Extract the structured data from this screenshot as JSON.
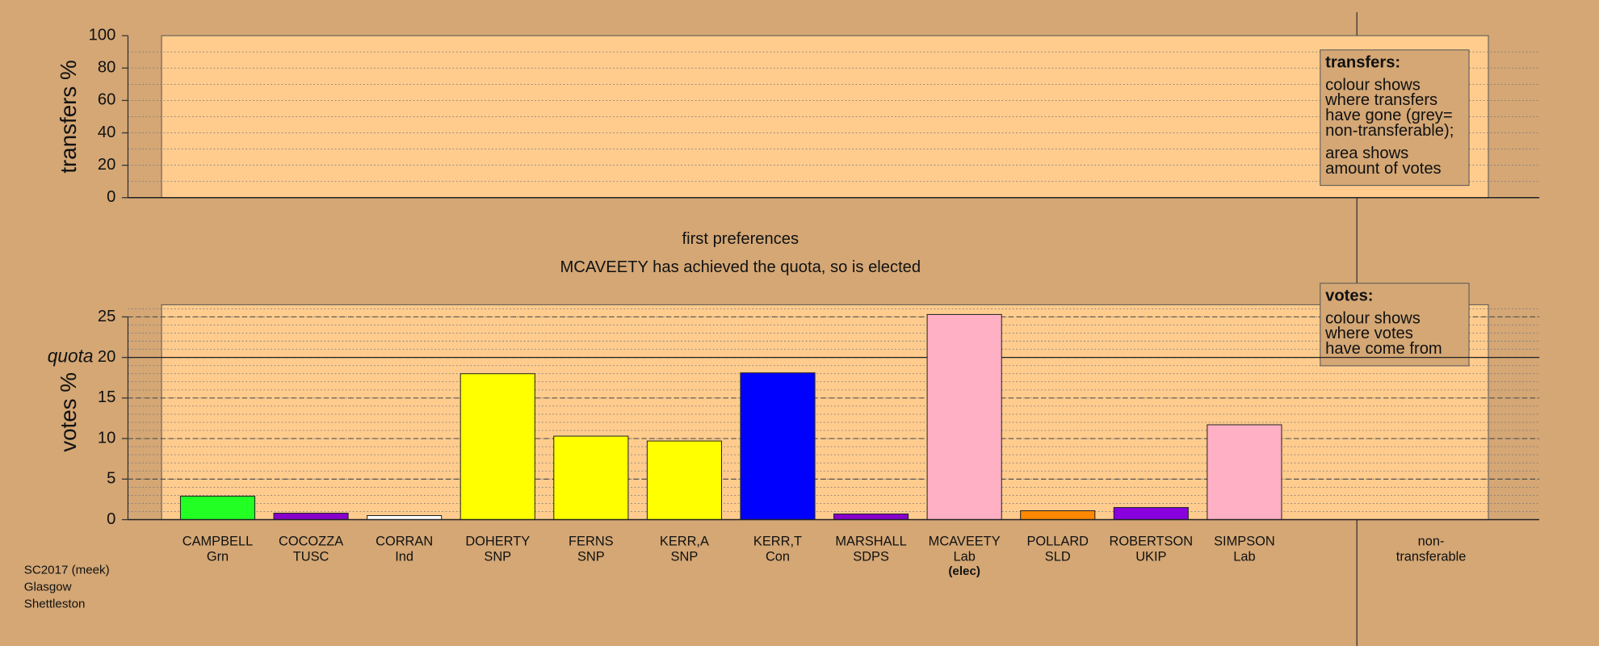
{
  "chart_data": [
    {
      "type": "empty",
      "ylabel": "transfers %",
      "ylim": [
        0,
        100
      ],
      "yticks": [
        0,
        20,
        40,
        60,
        80,
        100
      ],
      "minor_grid": 10,
      "legend": {
        "title": "transfers:",
        "lines": [
          "colour shows",
          "where transfers",
          "have gone (grey=",
          "non-transferable);",
          "area shows",
          "amount of votes"
        ]
      }
    },
    {
      "type": "bar",
      "title": "first preferences",
      "subtitle": "MCAVEETY has achieved the quota, so is elected",
      "ylabel": "votes %",
      "ylim": [
        0,
        26.5
      ],
      "yticks": [
        0,
        5,
        10,
        15,
        20,
        25
      ],
      "minor_grid": 1,
      "quota": {
        "value": 20,
        "label": "quota"
      },
      "categories": [
        "CAMPBELL",
        "COCOZZA",
        "CORRAN",
        "DOHERTY",
        "FERNS",
        "KERR,A",
        "KERR,T",
        "MARSHALL",
        "MCAVEETY",
        "POLLARD",
        "ROBERTSON",
        "SIMPSON"
      ],
      "parties": [
        "Grn",
        "TUSC",
        "Ind",
        "SNP",
        "SNP",
        "SNP",
        "Con",
        "SDPS",
        "Lab",
        "SLD",
        "UKIP",
        "Lab"
      ],
      "notes": [
        null,
        null,
        null,
        null,
        null,
        null,
        null,
        null,
        "(elec)",
        null,
        null,
        null
      ],
      "values": [
        2.9,
        0.8,
        0.5,
        18.0,
        10.3,
        9.7,
        18.1,
        0.7,
        25.3,
        1.1,
        1.5,
        11.7
      ],
      "colors": [
        "#22ff22",
        "#8800cc",
        "#ffffff",
        "#ffff00",
        "#ffff00",
        "#ffff00",
        "#0000ff",
        "#8800cc",
        "#ffb0c4",
        "#ff8800",
        "#8800dd",
        "#ffb0c4"
      ],
      "extra_category": [
        "non-",
        "transferable"
      ],
      "legend": {
        "title": "votes:",
        "lines": [
          "colour shows",
          "where votes",
          "have come from"
        ]
      }
    }
  ],
  "footer": [
    "SC2017 (meek)",
    "Glasgow",
    "Shettleston"
  ]
}
